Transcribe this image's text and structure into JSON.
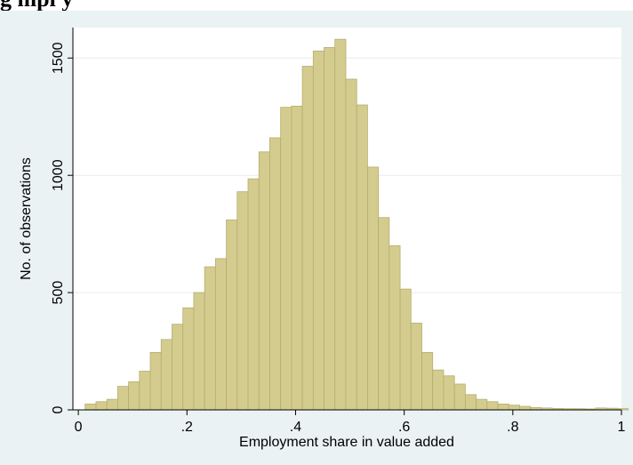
{
  "figure": {
    "title": "g                                              mpl y"
  },
  "chart_data": {
    "type": "histogram",
    "xlabel": "Employment share in value added",
    "ylabel": "No. of observations",
    "xlim": [
      -0.01,
      1.0
    ],
    "ylim": [
      0,
      1630
    ],
    "xticks": [
      {
        "value": 0,
        "label": "0"
      },
      {
        "value": 0.2,
        "label": ".2"
      },
      {
        "value": 0.4,
        "label": ".4"
      },
      {
        "value": 0.6,
        "label": ".6"
      },
      {
        "value": 0.8,
        "label": ".8"
      },
      {
        "value": 1,
        "label": "1"
      }
    ],
    "yticks": [
      {
        "value": 0,
        "label": "0"
      },
      {
        "value": 500,
        "label": "500"
      },
      {
        "value": 1000,
        "label": "1000"
      },
      {
        "value": 1500,
        "label": "1500"
      }
    ],
    "grid": true,
    "bar_color": "#d4cc8f",
    "bar_edge_color": "#b5ad6c",
    "bin_start": 0.0125,
    "bin_width": 0.02,
    "values": [
      25,
      35,
      45,
      100,
      120,
      165,
      245,
      300,
      365,
      435,
      500,
      610,
      645,
      810,
      930,
      985,
      1100,
      1160,
      1290,
      1295,
      1465,
      1530,
      1545,
      1580,
      1410,
      1300,
      1035,
      820,
      700,
      515,
      370,
      245,
      170,
      145,
      110,
      65,
      45,
      35,
      25,
      20,
      15,
      10,
      8,
      6,
      5,
      5,
      4,
      8,
      7,
      5
    ]
  }
}
